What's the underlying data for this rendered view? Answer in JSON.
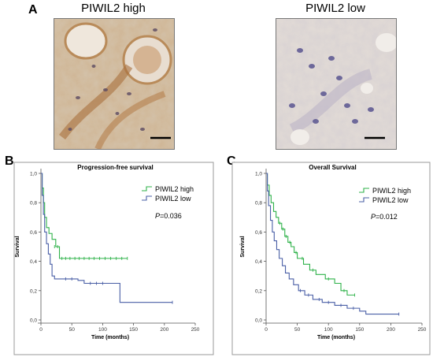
{
  "figure": {
    "panel_a": "A",
    "panel_b": "B",
    "panel_c": "C"
  },
  "images": [
    {
      "title": "PIWIL2 high",
      "description_colors": {
        "background": "#c9b49a",
        "stain": "#b07a45",
        "nuclei": "#6e5f7c"
      }
    },
    {
      "title": "PIWIL2 low",
      "description_colors": {
        "background": "#d9d3cf",
        "stain": "#c7bcc4",
        "nuclei": "#5f5a88"
      }
    }
  ],
  "colors": {
    "high": "#2fb24a",
    "low": "#4a5fa6",
    "axis": "#555555",
    "frame": "#9a9a9a"
  },
  "chart_data": [
    {
      "type": "line",
      "step": true,
      "title": "Progression-free survival",
      "xlabel": "Time (months)",
      "ylabel": "Survival",
      "xlim": [
        0,
        250
      ],
      "ylim": [
        0,
        1.0
      ],
      "xticks": [
        0,
        50,
        100,
        150,
        200,
        250
      ],
      "yticks": [
        "0,0",
        "0,2",
        "0,4",
        "0,6",
        "0,8",
        "1,0"
      ],
      "yticks_values": [
        0,
        0.2,
        0.4,
        0.6,
        0.8,
        1.0
      ],
      "annotation": "P=0.036",
      "annotation_italic": "P",
      "annotation_rest": "=0.036",
      "legend_position": "top-right",
      "series": [
        {
          "name": "PIWIL2 high",
          "color_key": "high",
          "steps": [
            [
              0,
              1.0
            ],
            [
              2,
              0.9
            ],
            [
              4,
              0.8
            ],
            [
              6,
              0.7
            ],
            [
              9,
              0.63
            ],
            [
              13,
              0.59
            ],
            [
              18,
              0.55
            ],
            [
              24,
              0.5
            ],
            [
              30,
              0.42
            ],
            [
              140,
              0.42
            ]
          ],
          "censors": [
            [
              22,
              0.5
            ],
            [
              27,
              0.5
            ],
            [
              34,
              0.42
            ],
            [
              40,
              0.42
            ],
            [
              47,
              0.42
            ],
            [
              55,
              0.42
            ],
            [
              62,
              0.42
            ],
            [
              70,
              0.42
            ],
            [
              78,
              0.42
            ],
            [
              86,
              0.42
            ],
            [
              95,
              0.42
            ],
            [
              104,
              0.42
            ],
            [
              113,
              0.42
            ],
            [
              122,
              0.42
            ],
            [
              131,
              0.42
            ],
            [
              140,
              0.42
            ]
          ]
        },
        {
          "name": "PIWIL2 low",
          "color_key": "low",
          "steps": [
            [
              0,
              1.0
            ],
            [
              2,
              0.85
            ],
            [
              4,
              0.72
            ],
            [
              6,
              0.6
            ],
            [
              9,
              0.52
            ],
            [
              12,
              0.45
            ],
            [
              15,
              0.38
            ],
            [
              18,
              0.3
            ],
            [
              22,
              0.28
            ],
            [
              60,
              0.27
            ],
            [
              70,
              0.25
            ],
            [
              128,
              0.12
            ],
            [
              213,
              0.12
            ]
          ],
          "censors": [
            [
              40,
              0.28
            ],
            [
              50,
              0.28
            ],
            [
              80,
              0.25
            ],
            [
              90,
              0.25
            ],
            [
              100,
              0.25
            ],
            [
              213,
              0.12
            ]
          ]
        }
      ]
    },
    {
      "type": "line",
      "step": true,
      "title": "Overall Survival",
      "xlabel": "Time (months)",
      "ylabel": "Survival",
      "xlim": [
        0,
        250
      ],
      "ylim": [
        0,
        1.0
      ],
      "xticks": [
        0,
        50,
        100,
        150,
        200,
        250
      ],
      "yticks": [
        "0,0",
        "0,2",
        "0,4",
        "0,6",
        "0,8",
        "1,0"
      ],
      "yticks_values": [
        0,
        0.2,
        0.4,
        0.6,
        0.8,
        1.0
      ],
      "annotation": "P=0.012",
      "annotation_italic": "P",
      "annotation_rest": "=0.012",
      "legend_position": "top-right",
      "series": [
        {
          "name": "PIWIL2 high",
          "color_key": "high",
          "steps": [
            [
              0,
              1.0
            ],
            [
              2,
              0.92
            ],
            [
              5,
              0.85
            ],
            [
              8,
              0.8
            ],
            [
              12,
              0.74
            ],
            [
              16,
              0.7
            ],
            [
              20,
              0.66
            ],
            [
              25,
              0.62
            ],
            [
              30,
              0.57
            ],
            [
              35,
              0.53
            ],
            [
              40,
              0.5
            ],
            [
              45,
              0.46
            ],
            [
              50,
              0.42
            ],
            [
              60,
              0.38
            ],
            [
              70,
              0.34
            ],
            [
              80,
              0.31
            ],
            [
              95,
              0.28
            ],
            [
              110,
              0.25
            ],
            [
              120,
              0.2
            ],
            [
              130,
              0.17
            ],
            [
              142,
              0.17
            ]
          ],
          "censors": [
            [
              22,
              0.66
            ],
            [
              27,
              0.62
            ],
            [
              32,
              0.57
            ],
            [
              38,
              0.53
            ],
            [
              48,
              0.46
            ],
            [
              58,
              0.42
            ],
            [
              75,
              0.34
            ],
            [
              100,
              0.28
            ],
            [
              125,
              0.2
            ],
            [
              142,
              0.17
            ]
          ]
        },
        {
          "name": "PIWIL2 low",
          "color_key": "low",
          "steps": [
            [
              0,
              1.0
            ],
            [
              2,
              0.88
            ],
            [
              4,
              0.78
            ],
            [
              7,
              0.68
            ],
            [
              10,
              0.6
            ],
            [
              13,
              0.54
            ],
            [
              17,
              0.48
            ],
            [
              21,
              0.42
            ],
            [
              26,
              0.37
            ],
            [
              31,
              0.32
            ],
            [
              37,
              0.28
            ],
            [
              44,
              0.24
            ],
            [
              52,
              0.2
            ],
            [
              62,
              0.17
            ],
            [
              75,
              0.14
            ],
            [
              90,
              0.12
            ],
            [
              110,
              0.1
            ],
            [
              130,
              0.08
            ],
            [
              150,
              0.06
            ],
            [
              160,
              0.04
            ],
            [
              213,
              0.04
            ]
          ],
          "censors": [
            [
              55,
              0.2
            ],
            [
              68,
              0.17
            ],
            [
              85,
              0.14
            ],
            [
              100,
              0.12
            ],
            [
              120,
              0.1
            ],
            [
              140,
              0.08
            ],
            [
              213,
              0.04
            ]
          ]
        }
      ]
    }
  ]
}
